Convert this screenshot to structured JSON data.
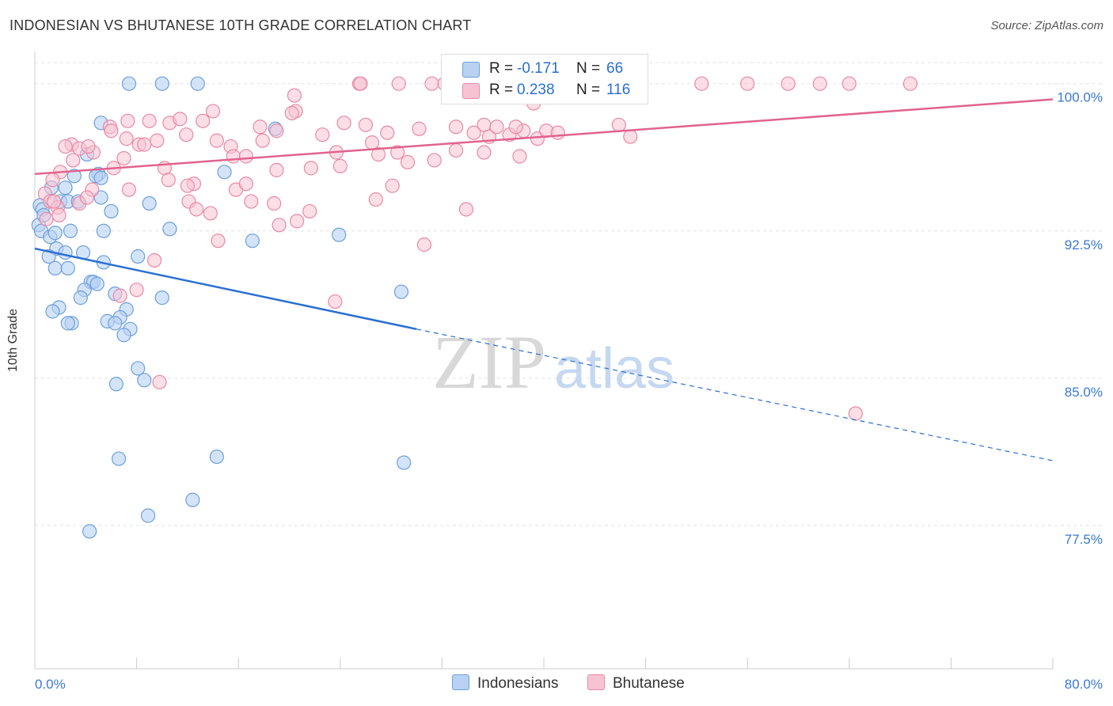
{
  "title": "INDONESIAN VS BHUTANESE 10TH GRADE CORRELATION CHART",
  "source": "Source: ZipAtlas.com",
  "watermark": {
    "zip": "ZIP",
    "atlas": "atlas"
  },
  "legend": {
    "series1": {
      "r_label": "R =",
      "r_value": "-0.171",
      "n_label": "N =",
      "n_value": "66"
    },
    "series2": {
      "r_label": "R =",
      "r_value": "0.238",
      "n_label": "N =",
      "n_value": "116"
    }
  },
  "colors": {
    "blue_fill": "#b8d2f3",
    "blue_stroke": "#6d9fdb",
    "blue_line": "#2a6fd1",
    "pink_fill": "#f7c3d2",
    "pink_stroke": "#e88aa6",
    "pink_line": "#e0638e",
    "tick_text": "#3a78d4",
    "grid": "#e2e2e2"
  },
  "chart_data": {
    "type": "scatter",
    "title": "INDONESIAN VS BHUTANESE 10TH GRADE CORRELATION CHART",
    "xlabel": "",
    "ylabel": "10th Grade",
    "xlim": [
      0,
      80
    ],
    "ylim": [
      70.2,
      101.6
    ],
    "x_tick_labels": [
      "0.0%",
      "80.0%"
    ],
    "y_ticks": [
      {
        "value": 100.0,
        "label": "100.0%"
      },
      {
        "value": 92.5,
        "label": "92.5%"
      },
      {
        "value": 85.0,
        "label": "85.0%"
      },
      {
        "value": 77.5,
        "label": "77.5%"
      }
    ],
    "grid": "horizontal dashed",
    "legend_position": "bottom",
    "series": [
      {
        "name": "Indonesians",
        "color": "#b8d2f3",
        "trend": {
          "x": [
            0,
            30.0
          ],
          "y": [
            91.6,
            87.5
          ],
          "dashed_to": [
            80,
            80.8
          ]
        },
        "points": [
          [
            7.4,
            100.0
          ],
          [
            10.0,
            100.0
          ],
          [
            12.8,
            100.0
          ],
          [
            1.3,
            94.7
          ],
          [
            2.0,
            94.0
          ],
          [
            2.6,
            94.0
          ],
          [
            3.4,
            94.0
          ],
          [
            0.4,
            93.8
          ],
          [
            0.6,
            93.6
          ],
          [
            0.3,
            92.8
          ],
          [
            0.5,
            92.5
          ],
          [
            1.2,
            92.2
          ],
          [
            2.8,
            92.5
          ],
          [
            5.4,
            92.5
          ],
          [
            10.6,
            92.6
          ],
          [
            1.7,
            91.6
          ],
          [
            3.8,
            91.4
          ],
          [
            2.4,
            91.4
          ],
          [
            1.1,
            91.2
          ],
          [
            8.1,
            91.2
          ],
          [
            5.4,
            90.9
          ],
          [
            1.6,
            90.6
          ],
          [
            2.6,
            90.6
          ],
          [
            4.4,
            89.9
          ],
          [
            4.6,
            89.9
          ],
          [
            3.9,
            89.5
          ],
          [
            3.6,
            89.1
          ],
          [
            6.3,
            89.3
          ],
          [
            10.0,
            89.1
          ],
          [
            1.9,
            88.6
          ],
          [
            1.4,
            88.4
          ],
          [
            7.2,
            88.5
          ],
          [
            6.7,
            88.1
          ],
          [
            5.7,
            87.9
          ],
          [
            6.3,
            87.8
          ],
          [
            2.9,
            87.8
          ],
          [
            7.5,
            87.5
          ],
          [
            2.6,
            87.8
          ],
          [
            7.0,
            87.2
          ],
          [
            8.1,
            85.5
          ],
          [
            8.6,
            84.9
          ],
          [
            6.4,
            84.7
          ],
          [
            6.6,
            80.9
          ],
          [
            14.3,
            81.0
          ],
          [
            29.0,
            80.7
          ],
          [
            12.4,
            78.8
          ],
          [
            8.9,
            78.0
          ],
          [
            4.3,
            77.2
          ],
          [
            4.1,
            96.4
          ],
          [
            5.0,
            95.4
          ],
          [
            4.8,
            95.3
          ],
          [
            5.2,
            95.2
          ],
          [
            3.1,
            95.3
          ],
          [
            14.9,
            95.5
          ],
          [
            2.4,
            94.7
          ],
          [
            5.2,
            94.2
          ],
          [
            6.0,
            93.5
          ],
          [
            9.0,
            93.9
          ],
          [
            17.1,
            92.0
          ],
          [
            23.9,
            92.3
          ],
          [
            28.8,
            89.4
          ],
          [
            18.9,
            97.7
          ],
          [
            5.2,
            98.0
          ],
          [
            0.7,
            93.3
          ],
          [
            1.6,
            92.4
          ],
          [
            4.9,
            89.8
          ]
        ]
      },
      {
        "name": "Bhutanese",
        "color": "#f7c3d2",
        "trend": {
          "x": [
            0,
            80
          ],
          "y": [
            95.4,
            99.2
          ]
        },
        "points": [
          [
            25.5,
            100.0
          ],
          [
            28.6,
            100.0
          ],
          [
            31.2,
            100.0
          ],
          [
            32.2,
            100.0
          ],
          [
            34.6,
            100.0
          ],
          [
            37.0,
            100.0
          ],
          [
            42.4,
            100.0
          ],
          [
            44.6,
            100.0
          ],
          [
            47.6,
            100.0
          ],
          [
            52.4,
            100.0
          ],
          [
            56.0,
            100.0
          ],
          [
            59.2,
            100.0
          ],
          [
            61.7,
            100.0
          ],
          [
            20.4,
            99.4
          ],
          [
            35.2,
            99.4
          ],
          [
            14.0,
            98.6
          ],
          [
            20.5,
            98.6
          ],
          [
            25.6,
            100.0
          ],
          [
            39.2,
            99.0
          ],
          [
            7.3,
            98.1
          ],
          [
            9.0,
            98.1
          ],
          [
            10.6,
            98.0
          ],
          [
            13.2,
            98.1
          ],
          [
            24.3,
            98.0
          ],
          [
            26.0,
            97.9
          ],
          [
            30.2,
            97.7
          ],
          [
            33.1,
            97.8
          ],
          [
            35.3,
            97.9
          ],
          [
            38.4,
            97.6
          ],
          [
            45.9,
            97.9
          ],
          [
            11.4,
            98.2
          ],
          [
            17.7,
            97.8
          ],
          [
            19.0,
            97.6
          ],
          [
            22.6,
            97.4
          ],
          [
            27.7,
            97.5
          ],
          [
            35.7,
            97.3
          ],
          [
            37.3,
            97.4
          ],
          [
            39.5,
            97.2
          ],
          [
            40.2,
            97.6
          ],
          [
            41.1,
            97.5
          ],
          [
            5.9,
            97.8
          ],
          [
            6.0,
            97.6
          ],
          [
            7.2,
            97.2
          ],
          [
            9.6,
            97.1
          ],
          [
            11.9,
            97.4
          ],
          [
            14.3,
            97.1
          ],
          [
            17.9,
            97.1
          ],
          [
            2.9,
            96.9
          ],
          [
            3.5,
            96.7
          ],
          [
            8.2,
            96.9
          ],
          [
            8.6,
            96.9
          ],
          [
            15.4,
            96.8
          ],
          [
            3.0,
            96.1
          ],
          [
            4.6,
            96.5
          ],
          [
            7.0,
            96.2
          ],
          [
            15.6,
            96.3
          ],
          [
            16.6,
            96.3
          ],
          [
            23.7,
            96.5
          ],
          [
            27.0,
            96.4
          ],
          [
            28.5,
            96.5
          ],
          [
            33.1,
            96.6
          ],
          [
            35.3,
            96.5
          ],
          [
            38.1,
            96.3
          ],
          [
            2.4,
            96.8
          ],
          [
            6.2,
            95.7
          ],
          [
            10.2,
            95.7
          ],
          [
            19.0,
            95.6
          ],
          [
            21.7,
            95.7
          ],
          [
            24.0,
            95.8
          ],
          [
            29.3,
            96.0
          ],
          [
            31.4,
            96.1
          ],
          [
            2.0,
            95.5
          ],
          [
            10.5,
            95.1
          ],
          [
            12.5,
            94.9
          ],
          [
            15.8,
            94.6
          ],
          [
            16.6,
            94.9
          ],
          [
            28.1,
            94.8
          ],
          [
            1.4,
            95.1
          ],
          [
            4.5,
            94.6
          ],
          [
            7.4,
            94.6
          ],
          [
            12.1,
            94.0
          ],
          [
            17.0,
            94.0
          ],
          [
            18.8,
            93.9
          ],
          [
            26.8,
            94.1
          ],
          [
            0.8,
            94.4
          ],
          [
            1.2,
            94.0
          ],
          [
            1.8,
            93.7
          ],
          [
            12.7,
            93.6
          ],
          [
            13.8,
            93.4
          ],
          [
            21.6,
            93.5
          ],
          [
            33.9,
            93.6
          ],
          [
            14.4,
            92.0
          ],
          [
            19.2,
            92.8
          ],
          [
            20.6,
            93.0
          ],
          [
            30.6,
            91.8
          ],
          [
            9.4,
            91.0
          ],
          [
            8.0,
            89.5
          ],
          [
            6.7,
            89.2
          ],
          [
            23.6,
            88.9
          ],
          [
            9.8,
            84.8
          ],
          [
            64.0,
            100.0
          ],
          [
            68.8,
            100.0
          ],
          [
            20.2,
            98.5
          ],
          [
            46.8,
            97.3
          ],
          [
            12.0,
            94.8
          ],
          [
            1.9,
            93.3
          ],
          [
            3.5,
            93.9
          ],
          [
            4.1,
            94.2
          ],
          [
            1.5,
            94.0
          ],
          [
            26.5,
            97.0
          ],
          [
            36.3,
            97.8
          ],
          [
            0.9,
            93.1
          ],
          [
            4.2,
            96.8
          ],
          [
            34.5,
            97.5
          ],
          [
            37.8,
            97.8
          ],
          [
            64.5,
            83.2
          ]
        ]
      }
    ]
  },
  "bottom_legend": [
    "Indonesians",
    "Bhutanese"
  ]
}
